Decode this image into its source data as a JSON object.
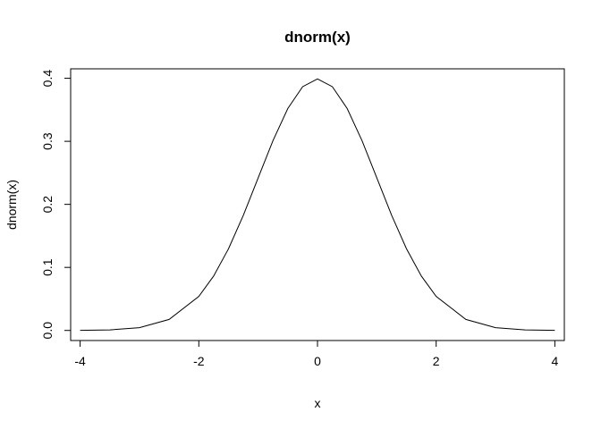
{
  "chart_data": {
    "type": "line",
    "title": "dnorm(x)",
    "xlabel": "x",
    "ylabel": "dnorm(x)",
    "xlim": [
      -4.16,
      4.16
    ],
    "ylim": [
      -0.016,
      0.415
    ],
    "x_ticks": [
      -4,
      -2,
      0,
      2,
      4
    ],
    "x_tick_labels": [
      "-4",
      "-2",
      "0",
      "2",
      "4"
    ],
    "y_ticks": [
      0.0,
      0.1,
      0.2,
      0.3,
      0.4
    ],
    "y_tick_labels": [
      "0.0",
      "0.1",
      "0.2",
      "0.3",
      "0.4"
    ],
    "grid": false,
    "legend": "none",
    "series": [
      {
        "color": "#000000",
        "x": [
          -4,
          -3.5,
          -3,
          -2.5,
          -2,
          -1.75,
          -1.5,
          -1.25,
          -1,
          -0.75,
          -0.5,
          -0.25,
          0,
          0.25,
          0.5,
          0.75,
          1,
          1.25,
          1.5,
          1.75,
          2,
          2.5,
          3,
          3.5,
          4
        ],
        "y": [
          0.0001,
          0.0009,
          0.0044,
          0.0175,
          0.054,
          0.0863,
          0.1295,
          0.1826,
          0.242,
          0.3011,
          0.3521,
          0.3867,
          0.3989,
          0.3867,
          0.3521,
          0.3011,
          0.242,
          0.1826,
          0.1295,
          0.0863,
          0.054,
          0.0175,
          0.0044,
          0.0009,
          0.0001
        ]
      }
    ]
  }
}
